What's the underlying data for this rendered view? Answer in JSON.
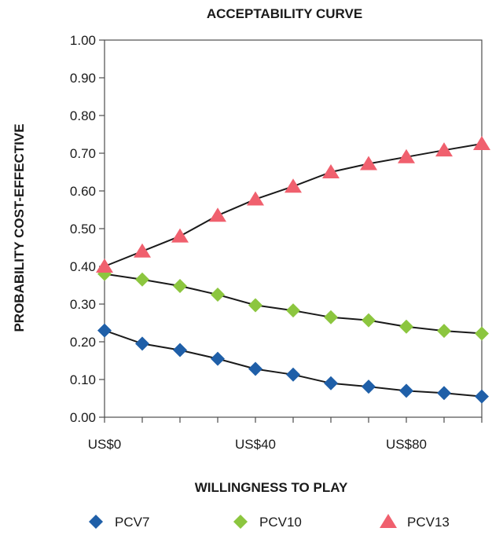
{
  "chart_data": {
    "type": "line",
    "title": "ACCEPTABILITY CURVE",
    "xlabel": "WILLINGNESS TO PLAY",
    "ylabel": "PROBABILITY COST-EFFECTIVE",
    "x": [
      0,
      10,
      20,
      30,
      40,
      50,
      60,
      70,
      80,
      90,
      100
    ],
    "xlim": [
      0,
      100
    ],
    "x_ticks": [
      0,
      40,
      80
    ],
    "x_tick_labels": [
      "US$0",
      "US$40",
      "US$80"
    ],
    "ylim": [
      0,
      1
    ],
    "y_ticks": [
      0,
      0.1,
      0.2,
      0.3,
      0.4,
      0.5,
      0.6,
      0.7,
      0.8,
      0.9,
      1.0
    ],
    "y_tick_labels": [
      "0.00",
      "0.10",
      "0.20",
      "0.30",
      "0.40",
      "0.50",
      "0.60",
      "0.70",
      "0.80",
      "0.90",
      "1.00"
    ],
    "grid": false,
    "legend_position": "bottom",
    "series": [
      {
        "name": "PCV7",
        "marker": "diamond",
        "color": "#1f5fa8",
        "values": [
          0.23,
          0.195,
          0.178,
          0.155,
          0.128,
          0.113,
          0.09,
          0.081,
          0.07,
          0.064,
          0.055
        ]
      },
      {
        "name": "PCV10",
        "marker": "diamond",
        "color": "#8cc63f",
        "values": [
          0.38,
          0.365,
          0.348,
          0.325,
          0.297,
          0.283,
          0.265,
          0.257,
          0.24,
          0.229,
          0.222
        ]
      },
      {
        "name": "PCV13",
        "marker": "triangle",
        "color": "#f0606e",
        "values": [
          0.4,
          0.44,
          0.48,
          0.535,
          0.578,
          0.612,
          0.65,
          0.672,
          0.69,
          0.708,
          0.725
        ]
      }
    ],
    "line_color": "#1a1a1a"
  }
}
